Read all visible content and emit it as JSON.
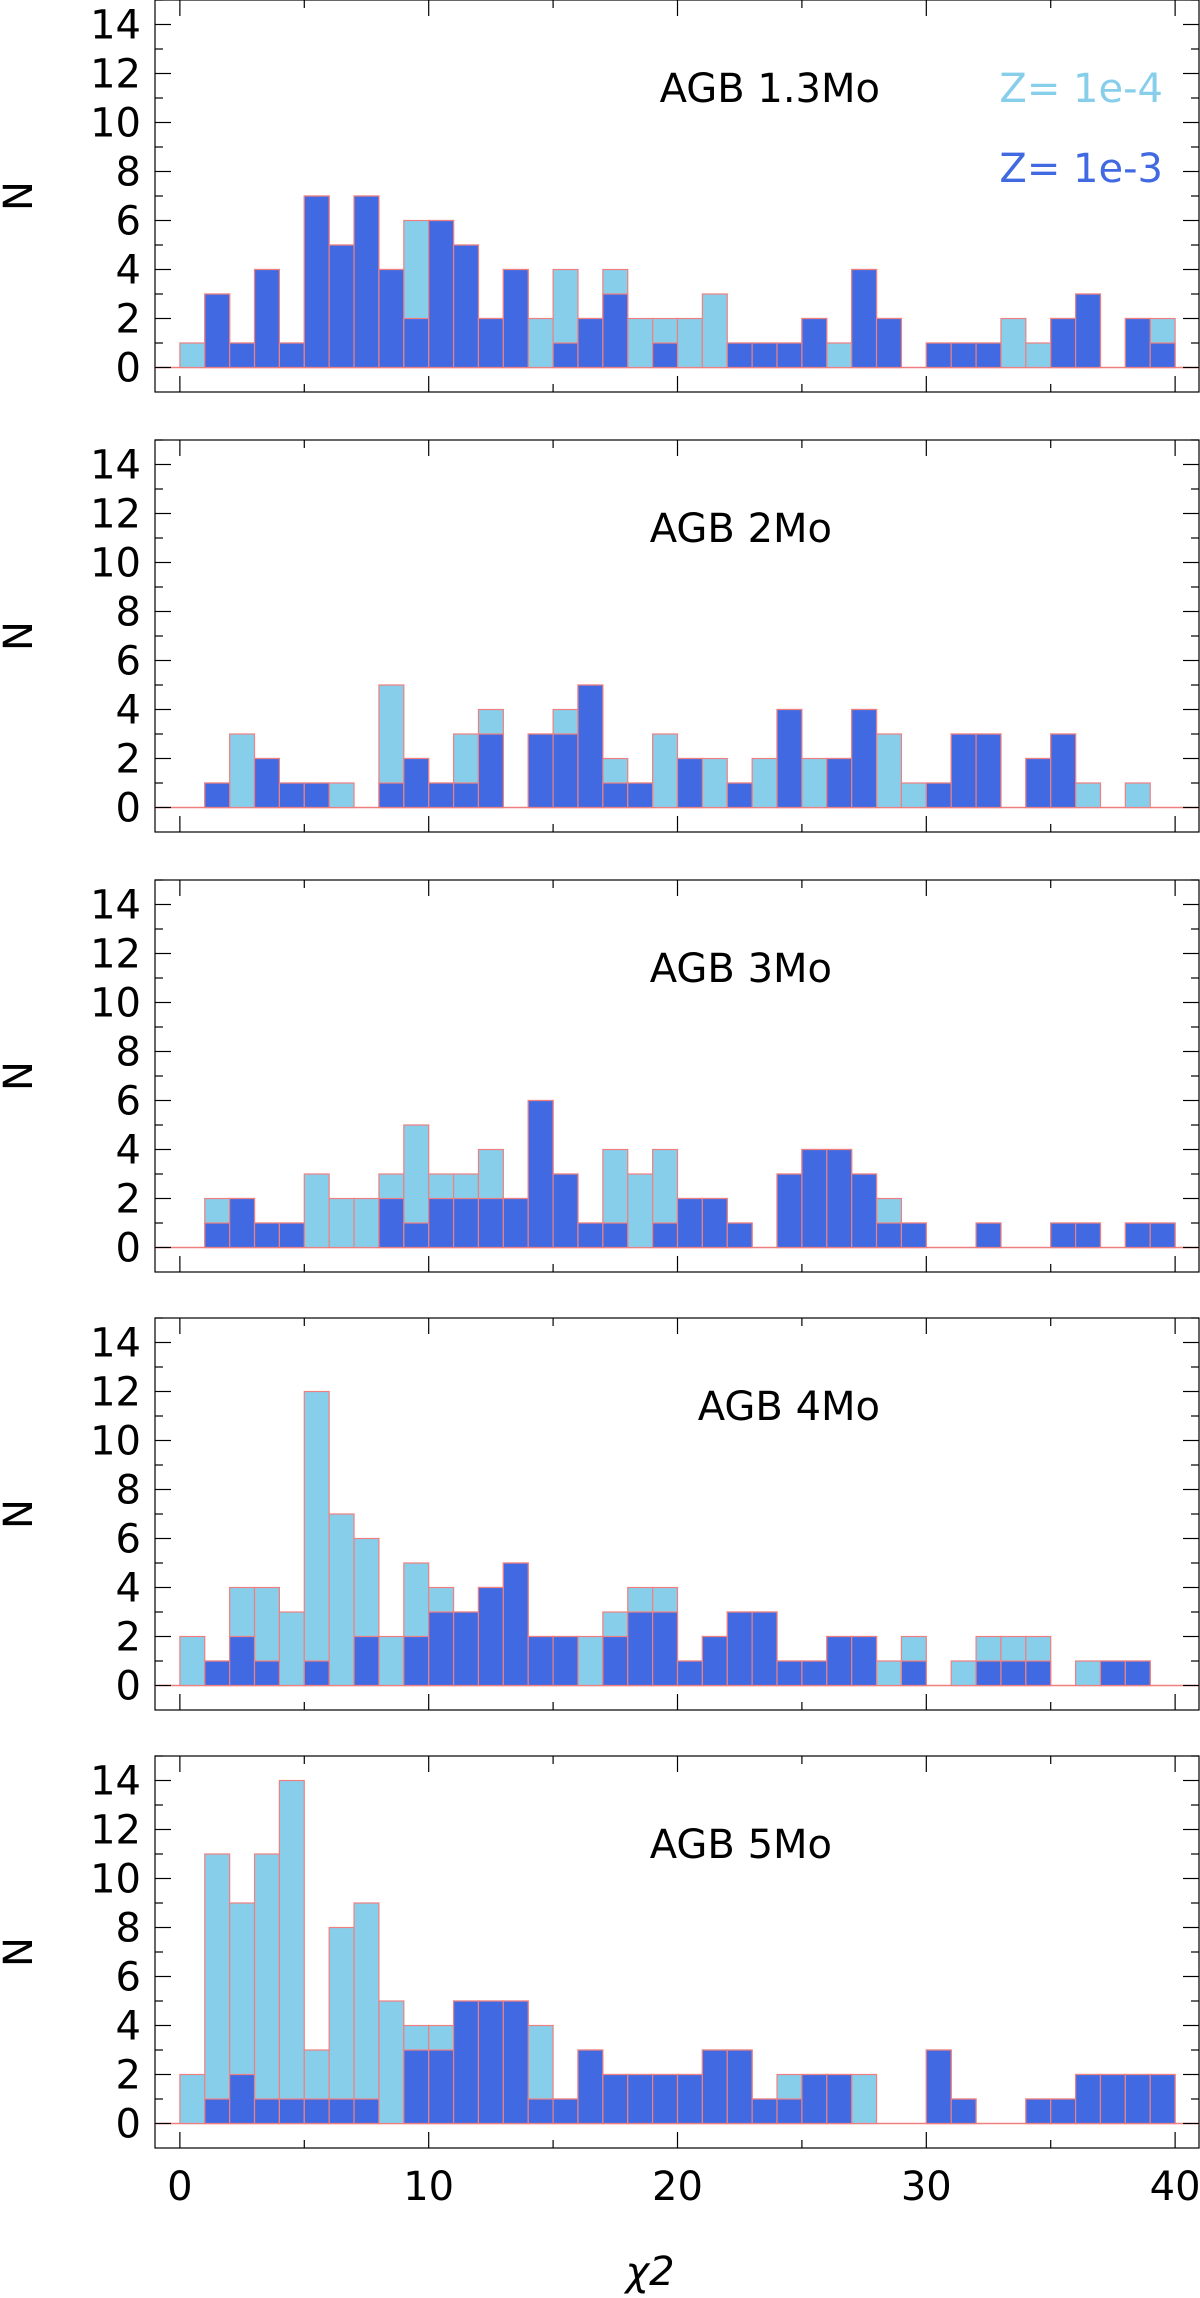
{
  "chart_data": [
    {
      "type": "bar",
      "title": "AGB 1.3Mo",
      "bin_width": 1,
      "bins_start": [
        0,
        1,
        2,
        3,
        4,
        5,
        6,
        7,
        8,
        9,
        10,
        11,
        12,
        13,
        14,
        15,
        16,
        17,
        18,
        19,
        20,
        21,
        22,
        23,
        24,
        25,
        26,
        27,
        28,
        29,
        30,
        31,
        32,
        33,
        34,
        35,
        36,
        37,
        38,
        39
      ],
      "series": [
        {
          "name": "Z= 1e-4",
          "values": [
            1,
            3,
            1,
            4,
            1,
            7,
            5,
            7,
            4,
            6,
            6,
            5,
            2,
            4,
            2,
            4,
            2,
            4,
            2,
            2,
            2,
            3,
            1,
            1,
            1,
            2,
            1,
            4,
            2,
            0,
            1,
            1,
            1,
            2,
            1,
            2,
            3,
            0,
            2,
            2
          ]
        },
        {
          "name": "Z= 1e-3",
          "values": [
            0,
            3,
            1,
            4,
            1,
            7,
            5,
            7,
            4,
            2,
            6,
            5,
            2,
            4,
            0,
            1,
            2,
            3,
            0,
            1,
            0,
            0,
            1,
            1,
            1,
            2,
            0,
            4,
            2,
            0,
            1,
            1,
            1,
            0,
            0,
            2,
            3,
            0,
            2,
            1
          ]
        }
      ],
      "xlabel": "χ2",
      "ylabel": "N",
      "xlim": [
        -1,
        41
      ],
      "ylim": [
        -1,
        15
      ],
      "xticks": [
        0,
        10,
        20,
        30,
        40
      ],
      "yticks": [
        0,
        2,
        4,
        6,
        8,
        10,
        12,
        14
      ],
      "legend": [
        {
          "label": "Z= 1e-4",
          "color": "#87ceeb"
        },
        {
          "label": "Z= 1e-3",
          "color": "#4169e1"
        }
      ],
      "legend_position": "top-right",
      "show_xticklabels": false
    },
    {
      "type": "bar",
      "title": "AGB 2Mo",
      "bin_width": 1,
      "bins_start": [
        0,
        1,
        2,
        3,
        4,
        5,
        6,
        7,
        8,
        9,
        10,
        11,
        12,
        13,
        14,
        15,
        16,
        17,
        18,
        19,
        20,
        21,
        22,
        23,
        24,
        25,
        26,
        27,
        28,
        29,
        30,
        31,
        32,
        33,
        34,
        35,
        36,
        37,
        38,
        39
      ],
      "series": [
        {
          "name": "Z= 1e-4",
          "values": [
            0,
            1,
            3,
            2,
            1,
            1,
            1,
            0,
            5,
            2,
            1,
            3,
            4,
            0,
            3,
            4,
            5,
            2,
            1,
            3,
            2,
            2,
            1,
            2,
            4,
            2,
            2,
            4,
            3,
            1,
            1,
            3,
            3,
            0,
            2,
            3,
            1,
            0,
            1,
            0
          ]
        },
        {
          "name": "Z= 1e-3",
          "values": [
            0,
            1,
            0,
            2,
            1,
            1,
            0,
            0,
            1,
            2,
            1,
            1,
            3,
            0,
            3,
            3,
            5,
            1,
            1,
            0,
            2,
            0,
            1,
            0,
            4,
            0,
            2,
            4,
            0,
            0,
            1,
            3,
            3,
            0,
            2,
            3,
            0,
            0,
            0,
            0
          ]
        }
      ],
      "xlabel": "χ2",
      "ylabel": "N",
      "xlim": [
        -1,
        41
      ],
      "ylim": [
        -1,
        15
      ],
      "xticks": [
        0,
        10,
        20,
        30,
        40
      ],
      "yticks": [
        0,
        2,
        4,
        6,
        8,
        10,
        12,
        14
      ],
      "show_xticklabels": false
    },
    {
      "type": "bar",
      "title": "AGB 3Mo",
      "bin_width": 1,
      "bins_start": [
        0,
        1,
        2,
        3,
        4,
        5,
        6,
        7,
        8,
        9,
        10,
        11,
        12,
        13,
        14,
        15,
        16,
        17,
        18,
        19,
        20,
        21,
        22,
        23,
        24,
        25,
        26,
        27,
        28,
        29,
        30,
        31,
        32,
        33,
        34,
        35,
        36,
        37,
        38,
        39
      ],
      "series": [
        {
          "name": "Z= 1e-4",
          "values": [
            0,
            2,
            2,
            1,
            1,
            3,
            2,
            2,
            3,
            5,
            3,
            3,
            4,
            2,
            6,
            3,
            1,
            4,
            3,
            4,
            2,
            2,
            1,
            0,
            3,
            4,
            4,
            3,
            2,
            1,
            0,
            0,
            1,
            0,
            0,
            1,
            1,
            0,
            1,
            1
          ]
        },
        {
          "name": "Z= 1e-3",
          "values": [
            0,
            1,
            2,
            1,
            1,
            0,
            0,
            0,
            2,
            1,
            2,
            2,
            2,
            2,
            6,
            3,
            1,
            1,
            0,
            1,
            2,
            2,
            1,
            0,
            3,
            4,
            4,
            3,
            1,
            1,
            0,
            0,
            1,
            0,
            0,
            1,
            1,
            0,
            1,
            1
          ]
        }
      ],
      "xlabel": "χ2",
      "ylabel": "N",
      "xlim": [
        -1,
        41
      ],
      "ylim": [
        -1,
        15
      ],
      "xticks": [
        0,
        10,
        20,
        30,
        40
      ],
      "yticks": [
        0,
        2,
        4,
        6,
        8,
        10,
        12,
        14
      ],
      "show_xticklabels": false
    },
    {
      "type": "bar",
      "title": "AGB 4Mo",
      "bin_width": 1,
      "bins_start": [
        0,
        1,
        2,
        3,
        4,
        5,
        6,
        7,
        8,
        9,
        10,
        11,
        12,
        13,
        14,
        15,
        16,
        17,
        18,
        19,
        20,
        21,
        22,
        23,
        24,
        25,
        26,
        27,
        28,
        29,
        30,
        31,
        32,
        33,
        34,
        35,
        36,
        37,
        38,
        39
      ],
      "series": [
        {
          "name": "Z= 1e-4",
          "values": [
            2,
            1,
            4,
            4,
            3,
            12,
            7,
            6,
            2,
            5,
            4,
            3,
            4,
            5,
            2,
            2,
            2,
            3,
            4,
            4,
            1,
            2,
            3,
            3,
            1,
            1,
            2,
            2,
            1,
            2,
            0,
            1,
            2,
            2,
            2,
            0,
            1,
            1,
            1,
            0
          ]
        },
        {
          "name": "Z= 1e-3",
          "values": [
            0,
            1,
            2,
            1,
            0,
            1,
            0,
            2,
            0,
            2,
            3,
            3,
            4,
            5,
            2,
            2,
            0,
            2,
            3,
            3,
            1,
            2,
            3,
            3,
            1,
            1,
            2,
            2,
            0,
            1,
            0,
            0,
            1,
            1,
            1,
            0,
            0,
            1,
            1,
            0
          ]
        }
      ],
      "xlabel": "χ2",
      "ylabel": "N",
      "xlim": [
        -1,
        41
      ],
      "ylim": [
        -1,
        15
      ],
      "xticks": [
        0,
        10,
        20,
        30,
        40
      ],
      "yticks": [
        0,
        2,
        4,
        6,
        8,
        10,
        12,
        14
      ],
      "show_xticklabels": false
    },
    {
      "type": "bar",
      "title": "AGB 5Mo",
      "bin_width": 1,
      "bins_start": [
        0,
        1,
        2,
        3,
        4,
        5,
        6,
        7,
        8,
        9,
        10,
        11,
        12,
        13,
        14,
        15,
        16,
        17,
        18,
        19,
        20,
        21,
        22,
        23,
        24,
        25,
        26,
        27,
        28,
        29,
        30,
        31,
        32,
        33,
        34,
        35,
        36,
        37,
        38,
        39
      ],
      "series": [
        {
          "name": "Z= 1e-4",
          "values": [
            2,
            11,
            9,
            11,
            14,
            3,
            8,
            9,
            5,
            4,
            4,
            5,
            5,
            5,
            4,
            1,
            3,
            2,
            2,
            2,
            2,
            3,
            3,
            1,
            2,
            2,
            2,
            2,
            0,
            0,
            3,
            1,
            0,
            0,
            1,
            1,
            2,
            2,
            2,
            2
          ]
        },
        {
          "name": "Z= 1e-3",
          "values": [
            0,
            1,
            2,
            1,
            1,
            1,
            1,
            1,
            0,
            3,
            3,
            5,
            5,
            5,
            1,
            1,
            3,
            2,
            2,
            2,
            2,
            3,
            3,
            1,
            1,
            2,
            2,
            0,
            0,
            0,
            3,
            1,
            0,
            0,
            1,
            1,
            2,
            2,
            2,
            2
          ]
        }
      ],
      "xlabel": "χ2",
      "ylabel": "N",
      "xlim": [
        -1,
        41
      ],
      "ylim": [
        -1,
        15
      ],
      "xticks": [
        0,
        10,
        20,
        30,
        40
      ],
      "yticks": [
        0,
        2,
        4,
        6,
        8,
        10,
        12,
        14
      ],
      "show_xticklabels": true
    }
  ],
  "x_axis_label": "χ2",
  "colors": {
    "light": "#87ceeb",
    "dark": "#4169e1",
    "edge": "#f08080",
    "axis": "#000000"
  }
}
